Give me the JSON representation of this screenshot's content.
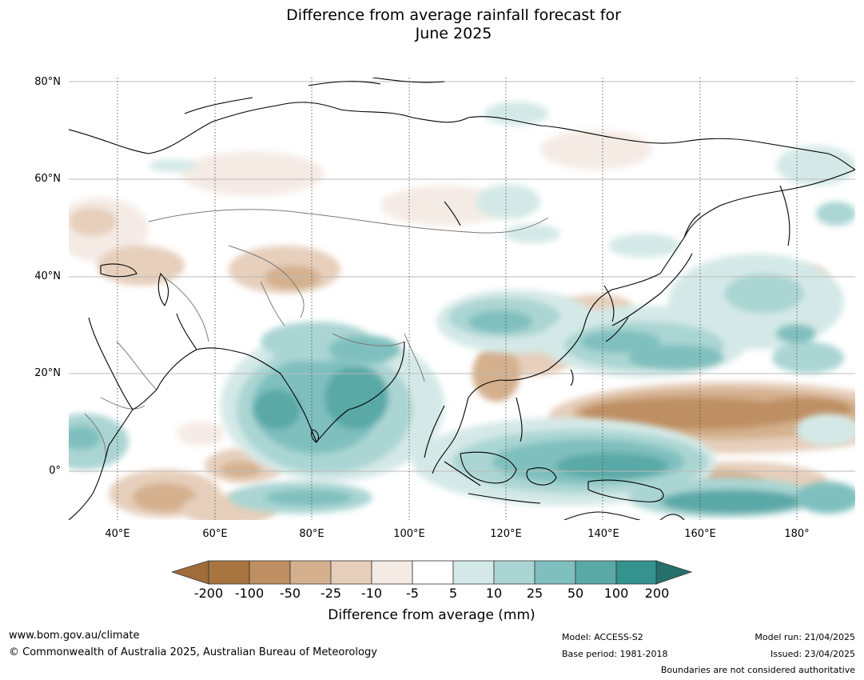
{
  "title_line1": "Difference from average rainfall forecast for",
  "title_line2": "June 2025",
  "map": {
    "lat_labels": [
      "80°N",
      "60°N",
      "40°N",
      "20°N",
      "0°"
    ],
    "lon_labels": [
      "40°E",
      "60°E",
      "80°E",
      "100°E",
      "120°E",
      "140°E",
      "160°E",
      "180°"
    ],
    "colors": {
      "dry": [
        "#a87541",
        "#be8f62",
        "#d4b08e",
        "#e6cfbb",
        "#f4ebe5"
      ],
      "wet": [
        "#d4e9e7",
        "#aad5d3",
        "#7fc0be",
        "#5aa9a7",
        "#34928f",
        "#256f6d"
      ],
      "coast": "#000000",
      "border": "#7a7a7a",
      "grid": "#bbbbbb"
    }
  },
  "colorbar": {
    "title": "Difference from average (mm)",
    "ticks": [
      "-200",
      "-100",
      "-50",
      "-25",
      "-10",
      "-5",
      "5",
      "10",
      "25",
      "50",
      "100",
      "200"
    ],
    "colors": [
      "#a87541",
      "#be8f62",
      "#d4b08e",
      "#e6cfbb",
      "#f4ebe5",
      "#ffffff",
      "#d4e9e7",
      "#aad5d3",
      "#7fc0be",
      "#5aa9a7",
      "#34928f"
    ],
    "end_left": "#a06c3a",
    "end_right": "#256f6d"
  },
  "footer": {
    "url": "www.bom.gov.au/climate",
    "copyright": "© Commonwealth of Australia 2025, Australian Bureau of Meteorology",
    "model": "Model: ACCESS-S2",
    "base_period": "Base period: 1981-2018",
    "model_run": "Model run: 21/04/2025",
    "issued": "Issued: 23/04/2025",
    "boundaries": "Boundaries are not considered authoritative"
  }
}
